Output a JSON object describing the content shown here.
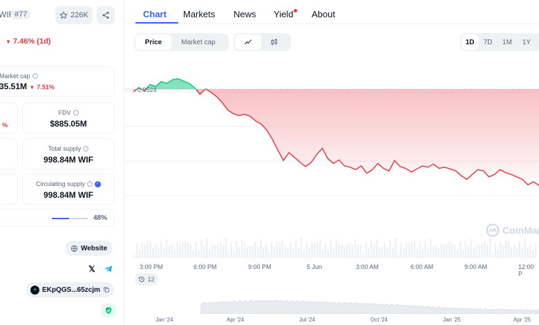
{
  "coin": {
    "symbol": "WIF",
    "rank": "#77",
    "watchlist_count": "226K",
    "change": "7.46% (1d)"
  },
  "stats": {
    "market_cap": {
      "label": "Market cap",
      "value": "35.51M",
      "change": "7.51%"
    },
    "volume_change": "%",
    "fdv": {
      "label": "FDV",
      "value": "$885.05M"
    },
    "total_supply": {
      "label": "Total supply",
      "value": "998.84M WIF"
    },
    "circulating_supply": {
      "label": "Circulating supply",
      "value": "998.84M WIF"
    },
    "supply_progress": {
      "value": 0.48,
      "label": "48%"
    }
  },
  "links": {
    "website": "Website",
    "contract": "EKpQGS...65zcjm"
  },
  "tabs": [
    "Chart",
    "Markets",
    "News",
    "Yield",
    "About"
  ],
  "chart_toggle": [
    "Price",
    "Market cap"
  ],
  "timeframes": [
    "1D",
    "7D",
    "1M",
    "1Y"
  ],
  "chart_data": {
    "type": "line",
    "reference_price": "0.9524",
    "x_labels": [
      "3:00 PM",
      "6:00 PM",
      "9:00 PM",
      "5 Jun",
      "3:00 AM",
      "6:00 AM",
      "9:00 AM",
      "12:00 P"
    ],
    "overview_labels": [
      "Jan '24",
      "Apr '24",
      "Jul '24",
      "Oct '24",
      "Jan '25",
      "Apr '25"
    ],
    "series": [
      {
        "values": [
          0.948,
          0.955,
          0.95,
          0.96,
          0.957,
          0.965,
          0.962,
          0.968,
          0.97,
          0.966,
          0.962,
          0.955,
          0.944,
          0.953,
          0.947,
          0.94,
          0.93,
          0.918,
          0.912,
          0.909,
          0.911,
          0.908,
          0.9,
          0.895,
          0.885,
          0.87,
          0.852,
          0.835,
          0.848,
          0.84,
          0.832,
          0.825,
          0.832,
          0.845,
          0.855,
          0.838,
          0.83,
          0.836,
          0.826,
          0.824,
          0.82,
          0.826,
          0.814,
          0.82,
          0.83,
          0.822,
          0.818,
          0.835,
          0.825,
          0.822,
          0.816,
          0.821,
          0.826,
          0.824,
          0.829,
          0.822,
          0.824,
          0.821,
          0.818,
          0.81,
          0.804,
          0.812,
          0.82,
          0.818,
          0.808,
          0.812,
          0.82,
          0.815,
          0.812,
          0.808,
          0.804,
          0.795,
          0.8,
          0.794
        ]
      }
    ]
  },
  "watermark": "CoinMar",
  "history_badge": "12"
}
